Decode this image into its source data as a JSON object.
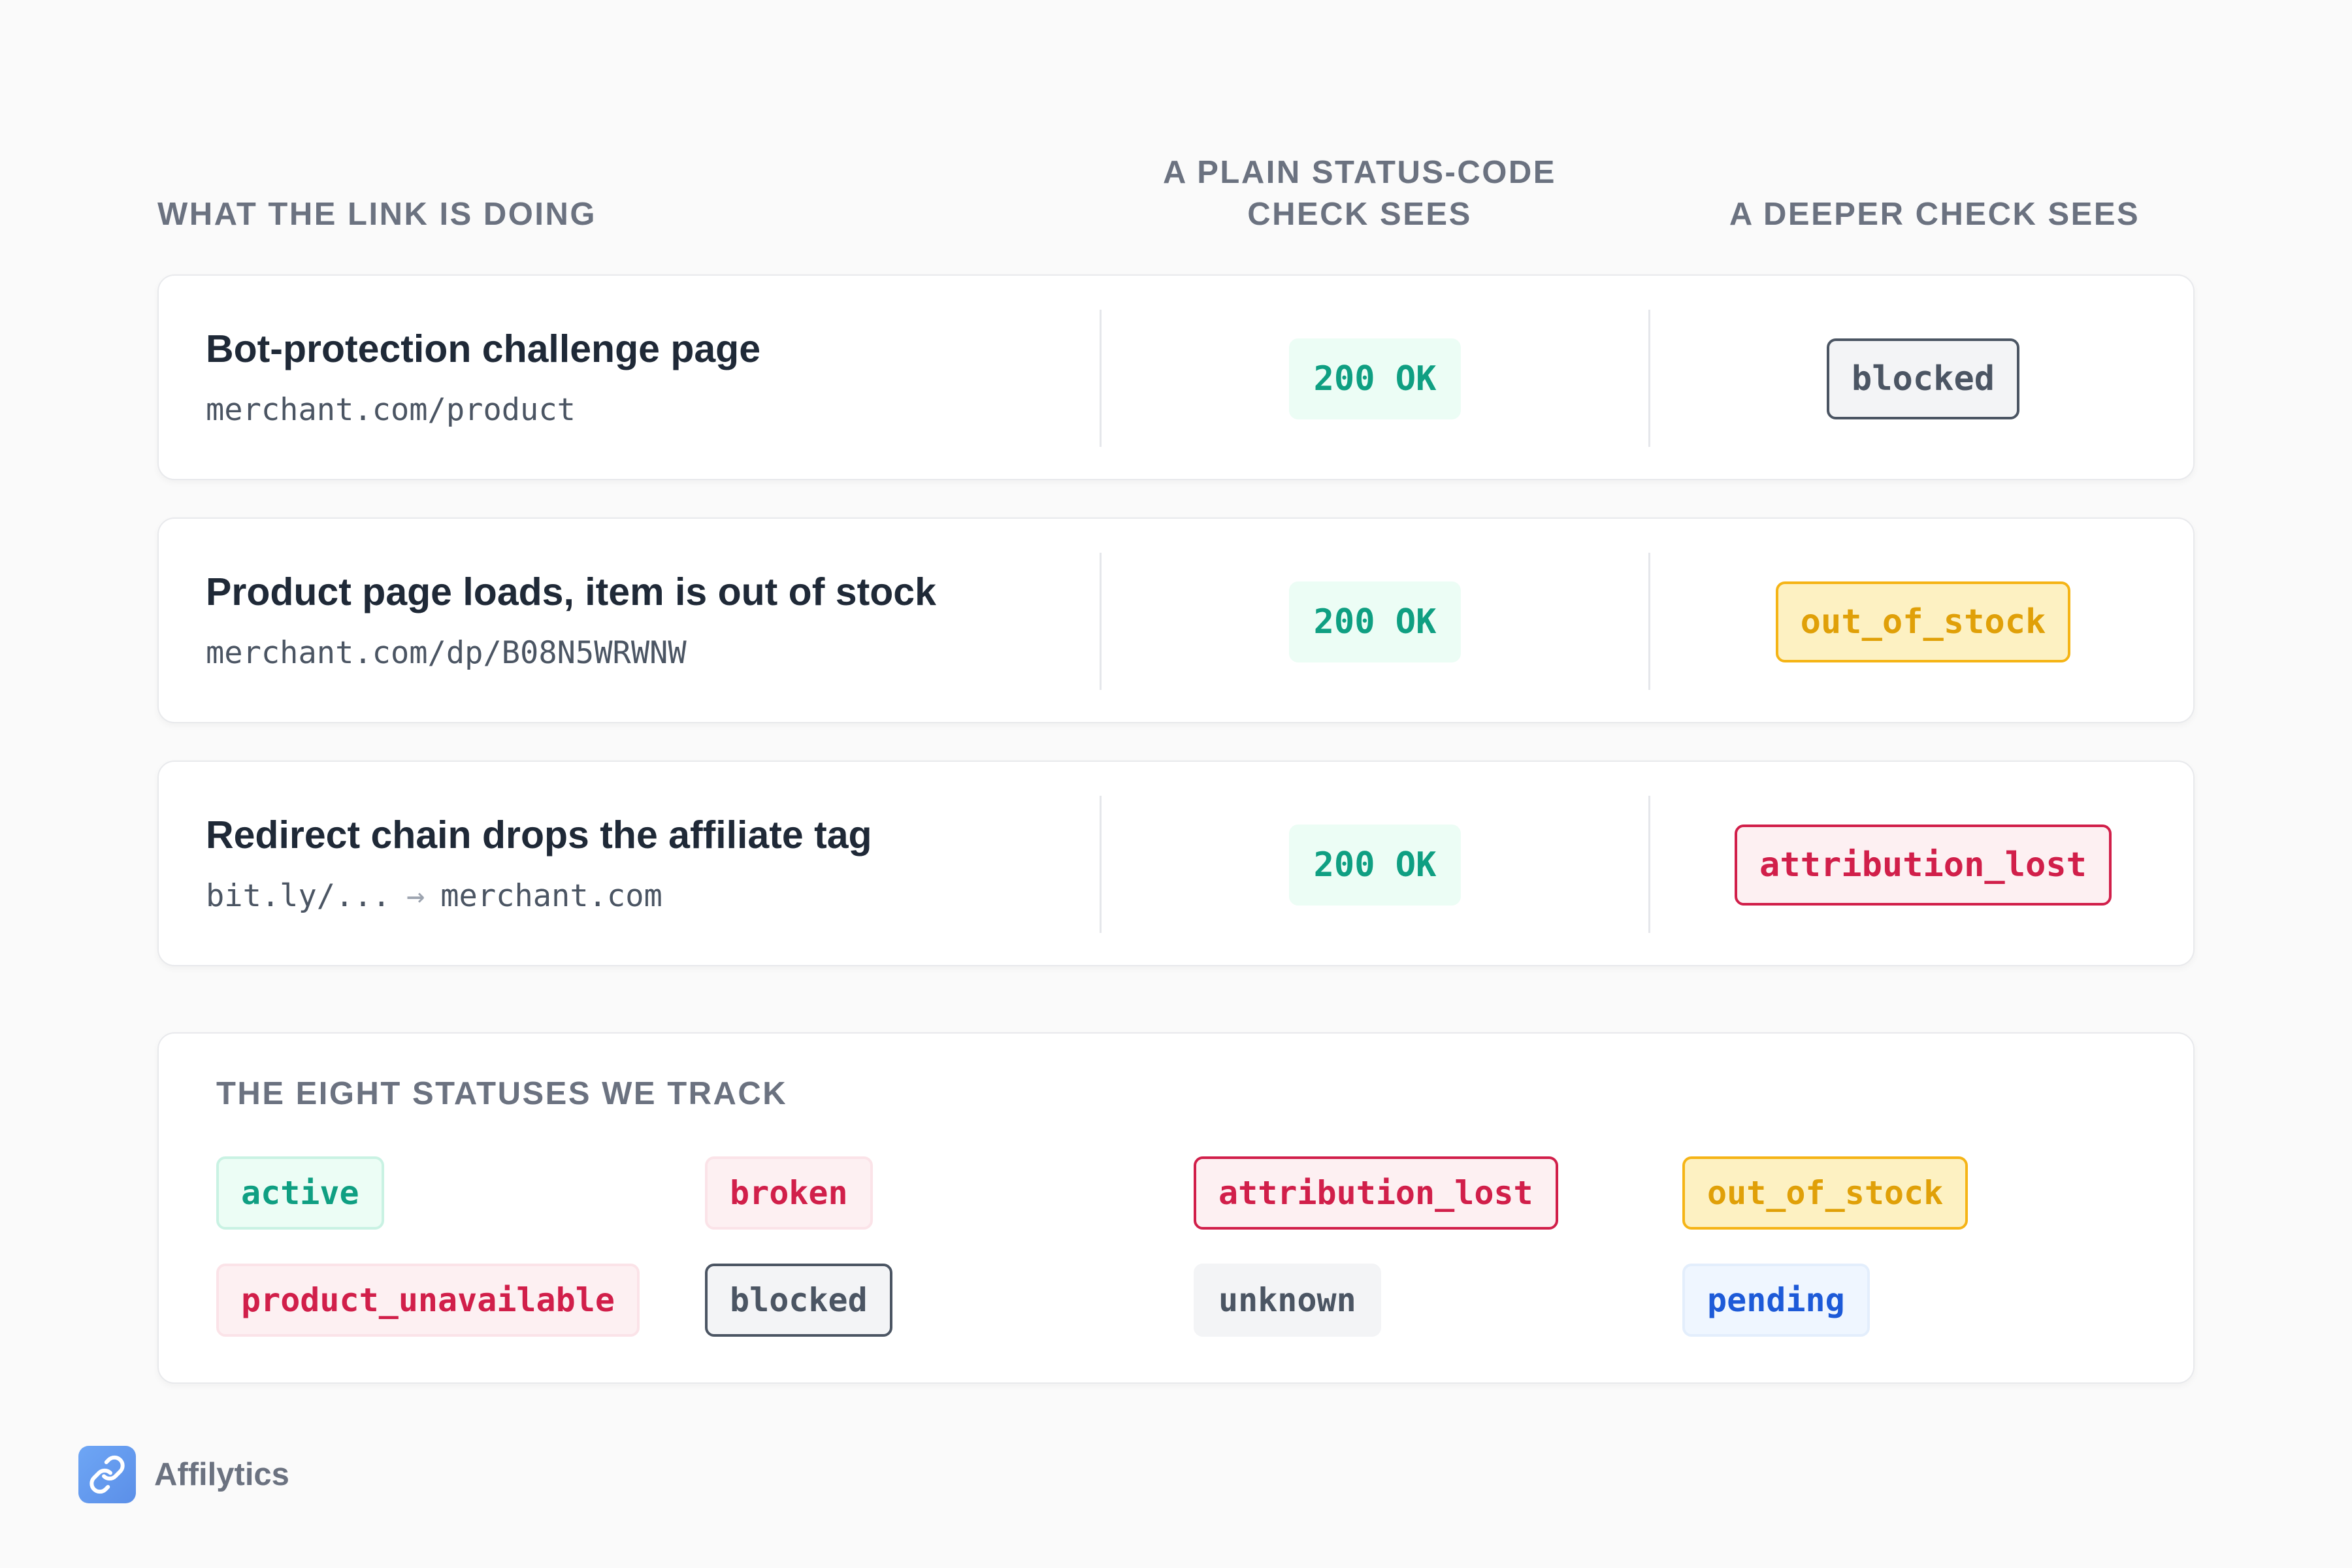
{
  "header": {
    "col1": "WHAT THE LINK IS DOING",
    "col2_line1": "A PLAIN STATUS-CODE",
    "col2_line2": "CHECK SEES",
    "col3": "A DEEPER CHECK SEES"
  },
  "rows": [
    {
      "title": "Bot-protection challenge page",
      "url": "merchant.com/product",
      "plain_check": "200 OK",
      "deeper_check": "blocked"
    },
    {
      "title": "Product page loads, item is out of stock",
      "url": "merchant.com/dp/B08N5WRWNW",
      "plain_check": "200 OK",
      "deeper_check": "out_of_stock"
    },
    {
      "title": "Redirect chain drops the affiliate tag",
      "url_from": "bit.ly/...",
      "url_arrow": "→",
      "url_to": "merchant.com",
      "plain_check": "200 OK",
      "deeper_check": "attribution_lost"
    }
  ],
  "legend": {
    "title": "THE EIGHT STATUSES WE TRACK",
    "statuses": [
      "active",
      "broken",
      "attribution_lost",
      "out_of_stock",
      "product_unavailable",
      "blocked",
      "unknown",
      "pending"
    ]
  },
  "brand": {
    "name": "Affilytics",
    "icon": "link-icon"
  },
  "colors": {
    "green": "#0f9f82",
    "red": "#d11f4a",
    "yellow": "#e0a008",
    "gray": "#4b5563",
    "blue": "#1d5ad8"
  }
}
